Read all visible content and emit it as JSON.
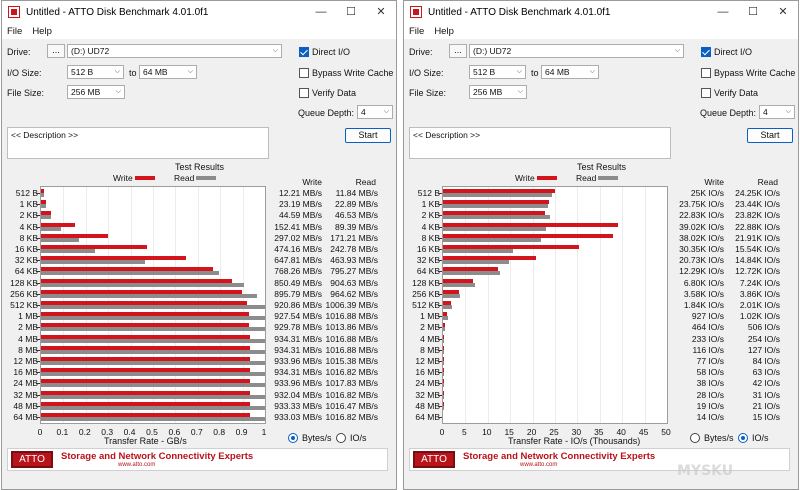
{
  "windows": [
    {
      "id": "left",
      "title": "Untitled - ATTO Disk Benchmark 4.01.0f1",
      "menu": [
        "File",
        "Help"
      ],
      "drive_label": "Drive:",
      "drive_browse": "...",
      "drive_value": "(D:) UD72",
      "io_size_label": "I/O Size:",
      "io_from": "512 B",
      "io_to_label": "to",
      "io_to": "64 MB",
      "file_size_label": "File Size:",
      "file_size": "256 MB",
      "direct_io": {
        "label": "Direct I/O",
        "checked": true
      },
      "bypass_cache": {
        "label": "Bypass Write Cache",
        "checked": false
      },
      "verify_data": {
        "label": "Verify Data",
        "checked": false
      },
      "queue_depth_label": "Queue Depth:",
      "queue_depth": "4",
      "description": "<< Description >>",
      "start_label": "Start",
      "results_title": "Test Results",
      "legend_write": "Write",
      "legend_read": "Read",
      "col_write": "Write",
      "col_read": "Read",
      "x_title": "Transfer Rate - GB/s",
      "radio_bytes": {
        "label": "Bytes/s",
        "selected": true
      },
      "radio_io": {
        "label": "IO/s",
        "selected": false
      },
      "banner_logo": "ATTO",
      "banner_tagline": "Storage and Network Connectivity Experts",
      "banner_url": "www.atto.com",
      "chart_data": {
        "type": "bar",
        "title": "Test Results",
        "xlabel": "Transfer Rate - GB/s",
        "xlim": [
          0,
          1
        ],
        "x_ticks": [
          "0",
          "0.1",
          "0.2",
          "0.3",
          "0.4",
          "0.5",
          "0.6",
          "0.7",
          "0.8",
          "0.9",
          "1"
        ],
        "categories": [
          "512 B",
          "1 KB",
          "2 KB",
          "4 KB",
          "8 KB",
          "16 KB",
          "32 KB",
          "64 KB",
          "128 KB",
          "256 KB",
          "512 KB",
          "1 MB",
          "2 MB",
          "4 MB",
          "8 MB",
          "12 MB",
          "16 MB",
          "24 MB",
          "32 MB",
          "48 MB",
          "64 MB"
        ],
        "series": [
          {
            "name": "Write",
            "color": "#d4141c",
            "values": [
              0.01221,
              0.02319,
              0.04459,
              0.15241,
              0.29702,
              0.47416,
              0.64781,
              0.76826,
              0.85049,
              0.89579,
              0.92086,
              0.92754,
              0.92978,
              0.93431,
              0.93431,
              0.93396,
              0.93431,
              0.93396,
              0.93204,
              0.93333,
              0.93303
            ]
          },
          {
            "name": "Read",
            "color": "#8c8c8c",
            "values": [
              0.01184,
              0.02289,
              0.04653,
              0.08939,
              0.17121,
              0.24278,
              0.46393,
              0.79527,
              0.90463,
              0.96462,
              1.00639,
              1.01688,
              1.01386,
              1.01688,
              1.01688,
              1.01538,
              1.01682,
              1.01783,
              1.01682,
              1.01647,
              1.01682
            ]
          }
        ],
        "write_text": [
          "12.21 MB/s",
          "23.19 MB/s",
          "44.59 MB/s",
          "152.41 MB/s",
          "297.02 MB/s",
          "474.16 MB/s",
          "647.81 MB/s",
          "768.26 MB/s",
          "850.49 MB/s",
          "895.79 MB/s",
          "920.86 MB/s",
          "927.54 MB/s",
          "929.78 MB/s",
          "934.31 MB/s",
          "934.31 MB/s",
          "933.96 MB/s",
          "934.31 MB/s",
          "933.96 MB/s",
          "932.04 MB/s",
          "933.33 MB/s",
          "933.03 MB/s"
        ],
        "read_text": [
          "11.84 MB/s",
          "22.89 MB/s",
          "46.53 MB/s",
          "89.39 MB/s",
          "171.21 MB/s",
          "242.78 MB/s",
          "463.93 MB/s",
          "795.27 MB/s",
          "904.63 MB/s",
          "964.62 MB/s",
          "1006.39 MB/s",
          "1016.88 MB/s",
          "1013.86 MB/s",
          "1016.88 MB/s",
          "1016.88 MB/s",
          "1015.38 MB/s",
          "1016.82 MB/s",
          "1017.83 MB/s",
          "1016.82 MB/s",
          "1016.47 MB/s",
          "1016.82 MB/s"
        ]
      }
    },
    {
      "id": "right",
      "title": "Untitled - ATTO Disk Benchmark 4.01.0f1",
      "menu": [
        "File",
        "Help"
      ],
      "drive_label": "Drive:",
      "drive_browse": "...",
      "drive_value": "(D:) UD72",
      "io_size_label": "I/O Size:",
      "io_from": "512 B",
      "io_to_label": "to",
      "io_to": "64 MB",
      "file_size_label": "File Size:",
      "file_size": "256 MB",
      "direct_io": {
        "label": "Direct I/O",
        "checked": true
      },
      "bypass_cache": {
        "label": "Bypass Write Cache",
        "checked": false
      },
      "verify_data": {
        "label": "Verify Data",
        "checked": false
      },
      "queue_depth_label": "Queue Depth:",
      "queue_depth": "4",
      "description": "<< Description >>",
      "start_label": "Start",
      "results_title": "Test Results",
      "legend_write": "Write",
      "legend_read": "Read",
      "col_write": "Write",
      "col_read": "Read",
      "x_title": "Transfer Rate - IO/s (Thousands)",
      "radio_bytes": {
        "label": "Bytes/s",
        "selected": false
      },
      "radio_io": {
        "label": "IO/s",
        "selected": true
      },
      "banner_logo": "ATTO",
      "banner_tagline": "Storage and Network Connectivity Experts",
      "banner_url": "www.atto.com",
      "chart_data": {
        "type": "bar",
        "title": "Test Results",
        "xlabel": "Transfer Rate - IO/s (Thousands)",
        "xlim": [
          0,
          50
        ],
        "x_ticks": [
          "0",
          "5",
          "10",
          "15",
          "20",
          "25",
          "30",
          "35",
          "40",
          "45",
          "50"
        ],
        "categories": [
          "512 B",
          "1 KB",
          "2 KB",
          "4 KB",
          "8 KB",
          "16 KB",
          "32 KB",
          "64 KB",
          "128 KB",
          "256 KB",
          "512 KB",
          "1 MB",
          "2 MB",
          "4 MB",
          "8 MB",
          "12 MB",
          "16 MB",
          "24 MB",
          "32 MB",
          "48 MB",
          "64 MB"
        ],
        "series": [
          {
            "name": "Write",
            "color": "#d4141c",
            "values": [
              25,
              23.75,
              22.83,
              39.02,
              38.02,
              30.35,
              20.73,
              12.29,
              6.8,
              3.58,
              1.84,
              0.927,
              0.464,
              0.233,
              0.116,
              0.077,
              0.058,
              0.038,
              0.028,
              0.019,
              0.014
            ]
          },
          {
            "name": "Read",
            "color": "#8c8c8c",
            "values": [
              24.25,
              23.44,
              23.82,
              22.88,
              21.91,
              15.54,
              14.84,
              12.72,
              7.24,
              3.86,
              2.01,
              1.02,
              0.506,
              0.254,
              0.127,
              0.084,
              0.063,
              0.042,
              0.031,
              0.021,
              0.015
            ]
          }
        ],
        "write_text": [
          "25K IO/s",
          "23.75K IO/s",
          "22.83K IO/s",
          "39.02K IO/s",
          "38.02K IO/s",
          "30.35K IO/s",
          "20.73K IO/s",
          "12.29K IO/s",
          "6.80K IO/s",
          "3.58K IO/s",
          "1.84K IO/s",
          "927 IO/s",
          "464 IO/s",
          "233 IO/s",
          "116 IO/s",
          "77 IO/s",
          "58 IO/s",
          "38 IO/s",
          "28 IO/s",
          "19 IO/s",
          "14 IO/s"
        ],
        "read_text": [
          "24.25K IO/s",
          "23.44K IO/s",
          "23.82K IO/s",
          "22.88K IO/s",
          "21.91K IO/s",
          "15.54K IO/s",
          "14.84K IO/s",
          "12.72K IO/s",
          "7.24K IO/s",
          "3.86K IO/s",
          "2.01K IO/s",
          "1.02K IO/s",
          "506 IO/s",
          "254 IO/s",
          "127 IO/s",
          "84 IO/s",
          "63 IO/s",
          "42 IO/s",
          "31 IO/s",
          "21 IO/s",
          "15 IO/s"
        ]
      }
    }
  ],
  "watermark": "MYSKU"
}
